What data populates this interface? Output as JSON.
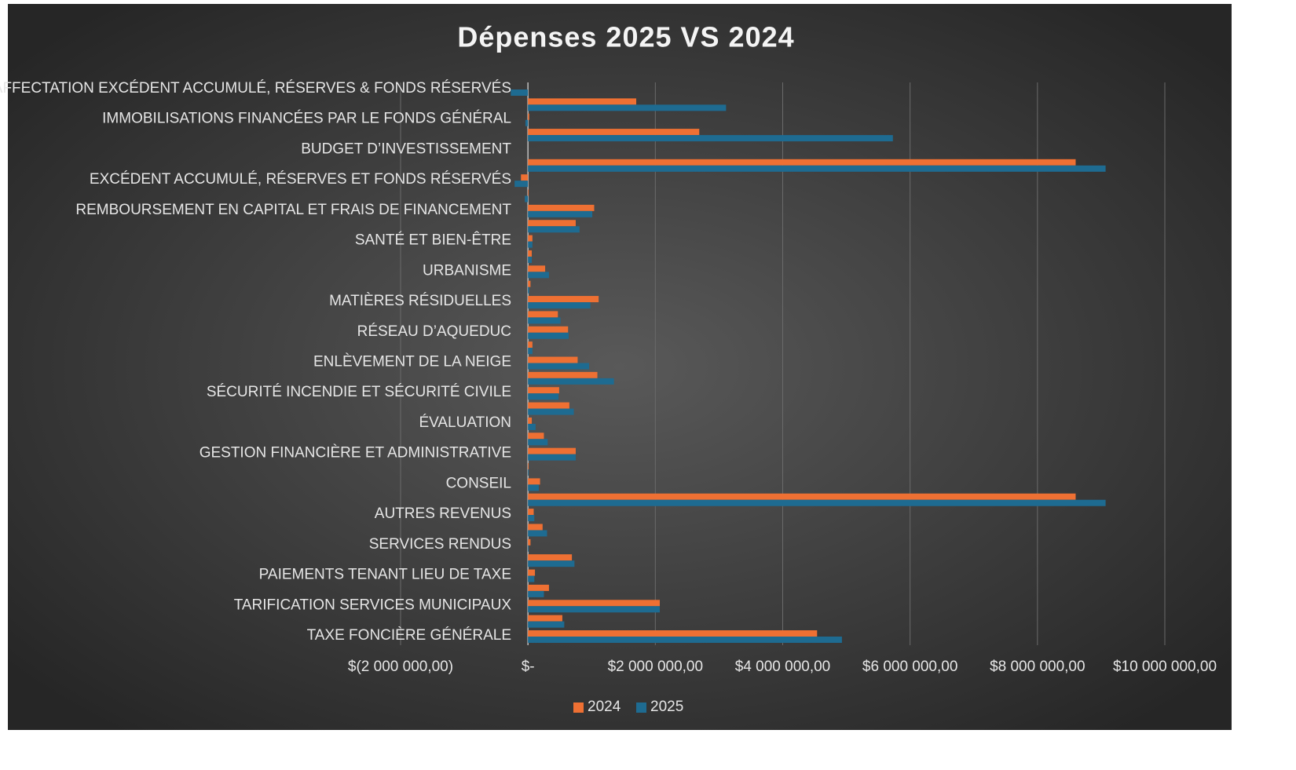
{
  "chart_data": {
    "type": "barh",
    "title": "Dépenses 2025 VS 2024",
    "categories": [
      "TAXE FONCIÈRE GÉNÉRALE",
      null,
      "TARIFICATION SERVICES MUNICIPAUX",
      null,
      "PAIEMENTS TENANT LIEU DE TAXE",
      null,
      "SERVICES RENDUS",
      null,
      "AUTRES REVENUS",
      null,
      "CONSEIL",
      null,
      "GESTION FINANCIÈRE ET ADMINISTRATIVE",
      null,
      "ÉVALUATION",
      null,
      "SÉCURITÉ INCENDIE ET SÉCURITÉ CIVILE",
      null,
      "ENLÈVEMENT DE LA NEIGE",
      null,
      "RÉSEAU D’AQUEDUC",
      null,
      "MATIÈRES RÉSIDUELLES",
      null,
      "URBANISME",
      null,
      "SANTÉ ET BIEN-ÊTRE",
      null,
      "REMBOURSEMENT EN CAPITAL ET FRAIS DE FINANCEMENT",
      null,
      "EXCÉDENT ACCUMULÉ, RÉSERVES ET FONDS RÉSERVÉS",
      null,
      "BUDGET D’INVESTISSEMENT",
      null,
      "IMMOBILISATIONS FINANCÉES PAR LE FONDS GÉNÉRAL",
      null,
      "AFFECTATION EXCÉDENT ACCUMULÉ, RÉSERVES & FONDS RÉSERVÉS"
    ],
    "series": [
      {
        "name": "2024",
        "color": "#ee7033",
        "values": [
          4540000,
          540000,
          2070000,
          330000,
          110000,
          690000,
          40000,
          230000,
          90000,
          8600000,
          190000,
          10000,
          750000,
          250000,
          60000,
          650000,
          490000,
          1090000,
          780000,
          70000,
          630000,
          470000,
          1110000,
          40000,
          270000,
          60000,
          70000,
          750000,
          1040000,
          10000,
          -110000,
          8600000,
          0,
          2690000,
          20000,
          1700000,
          0
        ]
      },
      {
        "name": "2025",
        "color": "#1e6b91",
        "values": [
          4930000,
          570000,
          2070000,
          250000,
          100000,
          730000,
          10000,
          300000,
          100000,
          9070000,
          170000,
          10000,
          750000,
          310000,
          120000,
          720000,
          480000,
          1350000,
          960000,
          70000,
          640000,
          510000,
          980000,
          20000,
          330000,
          60000,
          70000,
          810000,
          1010000,
          -50000,
          -210000,
          9070000,
          0,
          5730000,
          -40000,
          3110000,
          -270000
        ]
      }
    ],
    "xlim": [
      -2000000,
      10000000
    ],
    "xticks": [
      {
        "value": -2000000,
        "label": "$(2 000 000,00)"
      },
      {
        "value": 0,
        "label": "$-"
      },
      {
        "value": 2000000,
        "label": "$2 000 000,00"
      },
      {
        "value": 4000000,
        "label": "$4 000 000,00"
      },
      {
        "value": 6000000,
        "label": "$6 000 000,00"
      },
      {
        "value": 8000000,
        "label": "$8 000 000,00"
      },
      {
        "value": 10000000,
        "label": "$10 000 000,00"
      }
    ],
    "grid": true,
    "legend": "bottom"
  }
}
